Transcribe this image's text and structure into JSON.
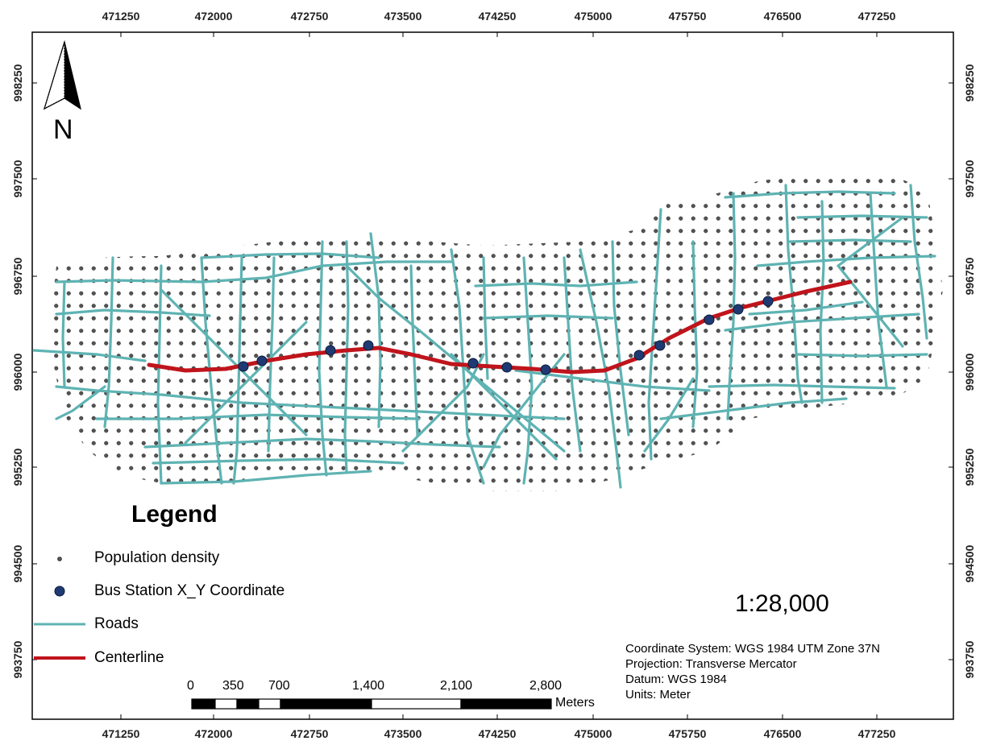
{
  "axes": {
    "x_ticks": [
      "471250",
      "472000",
      "472750",
      "473500",
      "474250",
      "475000",
      "475750",
      "476500",
      "477250"
    ],
    "y_ticks": [
      "998250",
      "997500",
      "996750",
      "996000",
      "995250",
      "994500",
      "993750"
    ]
  },
  "north_arrow": {
    "label": "N",
    "icon": "north-arrow-icon"
  },
  "legend": {
    "title": "Legend",
    "items": [
      {
        "label": "Population density",
        "symbol": "small-dot",
        "color": "#555555"
      },
      {
        "label": "Bus Station X_Y Coordinate",
        "symbol": "large-dot",
        "color": "#1f3a73"
      },
      {
        "label": "Roads",
        "symbol": "line",
        "color": "#5fb3b3"
      },
      {
        "label": "Centerline",
        "symbol": "thick-line",
        "color": "#c0141c"
      }
    ]
  },
  "scale_ratio": "1:28,000",
  "scalebar": {
    "labels": [
      "0",
      "350",
      "700",
      "1,400",
      "2,100",
      "2,800"
    ],
    "units": "Meters"
  },
  "coordinate_info": {
    "coordinate_system": "Coordinate System: WGS 1984 UTM Zone 37N",
    "projection": "Projection: Transverse Mercator",
    "datum": "Datum: WGS 1984",
    "units": "Units: Meter"
  },
  "colors": {
    "roads": "#5fb3b3",
    "centerline": "#c0141c",
    "bus_station": "#1f3a73",
    "population": "#555555"
  }
}
